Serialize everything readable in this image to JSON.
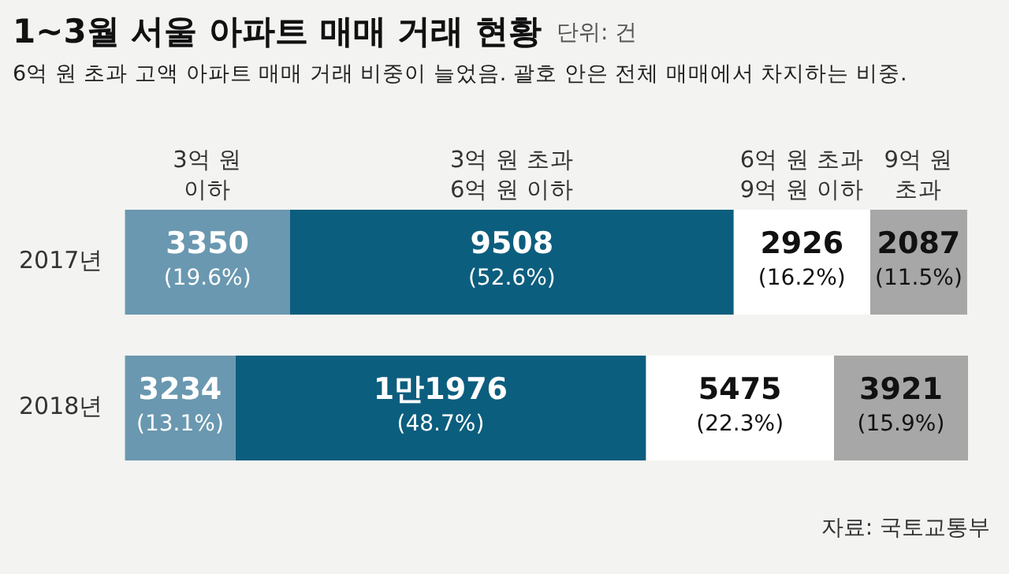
{
  "chart_data": {
    "type": "bar",
    "orientation": "horizontal",
    "stacked": true,
    "title": "1~3월 서울 아파트 매매 거래 현황",
    "subtitle": "6억 원 초과 고액 아파트 매매 거래 비중이 늘었음. 괄호 안은 전체 매매에서 차지하는 비중.",
    "annotations": [
      "단위: 건",
      "자료: 국토교통부"
    ],
    "categories": [
      "2017년",
      "2018년"
    ],
    "series": [
      {
        "name": "3억 원\n이하",
        "color": "#6a98b0",
        "values": [
          19.6,
          13.1
        ],
        "value_labels": [
          "3350\n(19.6%)",
          "3234\n(13.1%)"
        ]
      },
      {
        "name": "3억 원 초과\n6억 원 이하",
        "color": "#0c5e7e",
        "values": [
          52.6,
          48.7
        ],
        "value_labels": [
          "9508\n(52.6%)",
          "1만1976\n(48.7%)"
        ]
      },
      {
        "name": "6억 원 초과\n9억 원 이하",
        "color": "#ffffff",
        "values": [
          16.2,
          22.3
        ],
        "value_labels": [
          "2926\n(16.2%)",
          "5475\n(22.3%)"
        ]
      },
      {
        "name": "9억 원\n초과",
        "color": "#a7a7a7",
        "values": [
          11.5,
          15.9
        ],
        "value_labels": [
          "2087\n(11.5%)",
          "3921\n(15.9%)"
        ]
      }
    ],
    "xlim": [
      0,
      100
    ],
    "tick_labels": "y",
    "legend": false
  }
}
